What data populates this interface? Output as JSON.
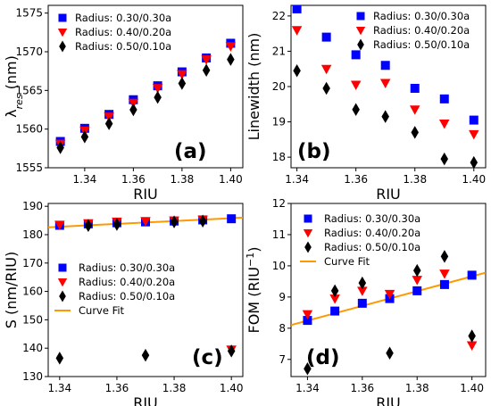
{
  "chart_data": [
    {
      "panel": "(a)",
      "type": "scatter",
      "xlabel": "RIU",
      "ylabel_main": "λ",
      "ylabel_sub": "res",
      "ylabel_unit": " (nm)",
      "xticks": [
        "1.34",
        "1.36",
        "1.38",
        "1.40"
      ],
      "yticks": [
        "1555",
        "1560",
        "1565",
        "1570",
        "1575"
      ],
      "xlim": [
        1.325,
        1.405
      ],
      "ylim": [
        1555,
        1576
      ],
      "legend": "top-left",
      "x": [
        1.33,
        1.34,
        1.35,
        1.36,
        1.37,
        1.38,
        1.39,
        1.4
      ],
      "series": [
        {
          "name": "Radius: 0.30/0.30a",
          "marker": "square",
          "color": "#0000ff",
          "values": [
            1558.4,
            1560.1,
            1561.9,
            1563.8,
            1565.6,
            1567.4,
            1569.2,
            1571.1
          ]
        },
        {
          "name": "Radius: 0.40/0.20a",
          "marker": "triangle",
          "color": "#ff0000",
          "values": [
            1558.1,
            1559.8,
            1561.6,
            1563.4,
            1565.3,
            1567.1,
            1569.0,
            1570.7
          ]
        },
        {
          "name": "Radius: 0.50/0.10a",
          "marker": "diamond",
          "color": "#000000",
          "values": [
            1557.6,
            1559.0,
            1560.7,
            1562.5,
            1564.1,
            1565.9,
            1567.6,
            1569.0
          ]
        }
      ]
    },
    {
      "panel": "(b)",
      "type": "scatter",
      "xlabel": "RIU",
      "ylabel": "Linewidth (nm)",
      "xticks": [
        "1.34",
        "1.36",
        "1.38",
        "1.40"
      ],
      "yticks": [
        "18",
        "19",
        "20",
        "21",
        "22"
      ],
      "xlim": [
        1.338,
        1.404
      ],
      "ylim": [
        17.7,
        22.3
      ],
      "legend": "top-right",
      "x": [
        1.34,
        1.35,
        1.36,
        1.37,
        1.38,
        1.39,
        1.4
      ],
      "series": [
        {
          "name": "Radius: 0.30/0.30a",
          "marker": "square",
          "color": "#0000ff",
          "values": [
            22.2,
            21.4,
            20.9,
            20.6,
            19.95,
            19.65,
            19.05
          ]
        },
        {
          "name": "Radius: 0.40/0.20a",
          "marker": "triangle",
          "color": "#ff0000",
          "values": [
            21.6,
            20.5,
            20.05,
            20.1,
            19.35,
            18.95,
            18.65
          ]
        },
        {
          "name": "Radius: 0.50/0.10a",
          "marker": "diamond",
          "color": "#000000",
          "values": [
            20.45,
            19.95,
            19.35,
            19.15,
            18.7,
            17.95,
            17.85
          ]
        }
      ]
    },
    {
      "panel": "(c)",
      "type": "scatter",
      "xlabel": "RIU",
      "ylabel": "S (nm/RIU)",
      "xticks": [
        "1.34",
        "1.36",
        "1.38",
        "1.40"
      ],
      "yticks": [
        "130",
        "140",
        "150",
        "160",
        "170",
        "180",
        "190"
      ],
      "xlim": [
        1.336,
        1.404
      ],
      "ylim": [
        130,
        191
      ],
      "legend": "center-left",
      "x": [
        1.34,
        1.35,
        1.36,
        1.37,
        1.38,
        1.39,
        1.4
      ],
      "series": [
        {
          "name": "Radius: 0.30/0.30a",
          "marker": "square",
          "color": "#0000ff",
          "values": [
            183.3,
            183.8,
            184.2,
            184.5,
            184.8,
            185.2,
            185.6
          ]
        },
        {
          "name": "Radius: 0.40/0.20a",
          "marker": "triangle",
          "color": "#ff0000",
          "values": [
            183.5,
            184.0,
            184.6,
            184.8,
            185.0,
            185.3,
            139.5
          ]
        },
        {
          "name": "Radius: 0.50/0.10a",
          "marker": "diamond",
          "color": "#000000",
          "values": [
            136.5,
            183.2,
            183.6,
            137.5,
            184.5,
            184.8,
            139.0
          ]
        },
        {
          "name": "Curve Fit",
          "marker": "line",
          "color": "#ff9900",
          "fit_x": [
            1.336,
            1.404
          ],
          "fit_y": [
            182.6,
            186.0
          ]
        }
      ]
    },
    {
      "panel": "(d)",
      "type": "scatter",
      "xlabel": "RIU",
      "ylabel_main": "FOM (RIU",
      "ylabel_sup": "−1",
      "ylabel_unit": ")",
      "xticks": [
        "1.34",
        "1.36",
        "1.38",
        "1.40"
      ],
      "yticks": [
        "7",
        "8",
        "9",
        "10",
        "11",
        "12"
      ],
      "xlim": [
        1.334,
        1.405
      ],
      "ylim": [
        6.45,
        12.0
      ],
      "legend": "top-left",
      "x": [
        1.34,
        1.35,
        1.36,
        1.37,
        1.38,
        1.39,
        1.4
      ],
      "series": [
        {
          "name": "Radius: 0.30/0.30a",
          "marker": "square",
          "color": "#0000ff",
          "values": [
            8.25,
            8.55,
            8.8,
            8.95,
            9.2,
            9.4,
            9.7
          ]
        },
        {
          "name": "Radius: 0.40/0.20a",
          "marker": "triangle",
          "color": "#ff0000",
          "values": [
            8.45,
            8.95,
            9.2,
            9.1,
            9.55,
            9.75,
            7.45
          ]
        },
        {
          "name": "Radius: 0.50/0.10a",
          "marker": "diamond",
          "color": "#000000",
          "values": [
            6.7,
            9.2,
            9.45,
            7.2,
            9.85,
            10.3,
            7.75
          ]
        },
        {
          "name": "Curve Fit",
          "marker": "line",
          "color": "#ff9900",
          "fit_x": [
            1.334,
            1.405
          ],
          "fit_y": [
            8.1,
            9.78
          ]
        }
      ]
    }
  ]
}
